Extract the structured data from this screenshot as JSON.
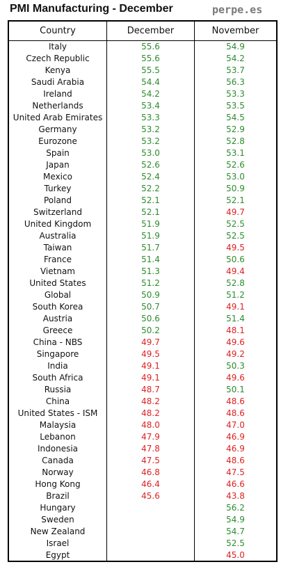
{
  "title": "PMI Manufacturing - December",
  "source": "perpe.es",
  "colors": {
    "above": "#2e8b2e",
    "below": "#dd2222",
    "text": "#111111"
  },
  "chart_data": {
    "type": "table",
    "threshold": 50,
    "columns": [
      "Country",
      "December",
      "November"
    ],
    "rows": [
      {
        "country": "Italy",
        "december": "55.6",
        "november": "54.9"
      },
      {
        "country": "Czech Republic",
        "december": "55.6",
        "november": "54.2"
      },
      {
        "country": "Kenya",
        "december": "55.5",
        "november": "53.7"
      },
      {
        "country": "Saudi Arabia",
        "december": "54.4",
        "november": "56.3"
      },
      {
        "country": "Ireland",
        "december": "54.2",
        "november": "53.3"
      },
      {
        "country": "Netherlands",
        "december": "53.4",
        "november": "53.5"
      },
      {
        "country": "United Arab Emirates",
        "december": "53.3",
        "november": "54.5"
      },
      {
        "country": "Germany",
        "december": "53.2",
        "november": "52.9"
      },
      {
        "country": "Eurozone",
        "december": "53.2",
        "november": "52.8"
      },
      {
        "country": "Spain",
        "december": "53.0",
        "november": "53.1"
      },
      {
        "country": "Japan",
        "december": "52.6",
        "november": "52.6"
      },
      {
        "country": "Mexico",
        "december": "52.4",
        "november": "53.0"
      },
      {
        "country": "Turkey",
        "december": "52.2",
        "november": "50.9"
      },
      {
        "country": "Poland",
        "december": "52.1",
        "november": "52.1"
      },
      {
        "country": "Switzerland",
        "december": "52.1",
        "november": "49.7"
      },
      {
        "country": "United Kingdom",
        "december": "51.9",
        "november": "52.5"
      },
      {
        "country": "Australia",
        "december": "51.9",
        "november": "52.5"
      },
      {
        "country": "Taiwan",
        "december": "51.7",
        "november": "49.5"
      },
      {
        "country": "France",
        "december": "51.4",
        "november": "50.6"
      },
      {
        "country": "Vietnam",
        "december": "51.3",
        "november": "49.4"
      },
      {
        "country": "United States",
        "december": "51.2",
        "november": "52.8"
      },
      {
        "country": "Global",
        "december": "50.9",
        "november": "51.2"
      },
      {
        "country": "South Korea",
        "december": "50.7",
        "november": "49.1"
      },
      {
        "country": "Austria",
        "december": "50.6",
        "november": "51.4"
      },
      {
        "country": "Greece",
        "december": "50.2",
        "november": "48.1"
      },
      {
        "country": "China - NBS",
        "december": "49.7",
        "november": "49.6"
      },
      {
        "country": "Singapore",
        "december": "49.5",
        "november": "49.2"
      },
      {
        "country": "India",
        "december": "49.1",
        "november": "50.3"
      },
      {
        "country": "South Africa",
        "december": "49.1",
        "november": "49.6"
      },
      {
        "country": "Russia",
        "december": "48.7",
        "november": "50.1"
      },
      {
        "country": "China",
        "december": "48.2",
        "november": "48.6"
      },
      {
        "country": "United States - ISM",
        "december": "48.2",
        "november": "48.6"
      },
      {
        "country": "Malaysia",
        "december": "48.0",
        "november": "47.0"
      },
      {
        "country": "Lebanon",
        "december": "47.9",
        "november": "46.9"
      },
      {
        "country": "Indonesia",
        "december": "47.8",
        "november": "46.9"
      },
      {
        "country": "Canada",
        "december": "47.5",
        "november": "48.6"
      },
      {
        "country": "Norway",
        "december": "46.8",
        "november": "47.5"
      },
      {
        "country": "Hong Kong",
        "december": "46.4",
        "november": "46.6"
      },
      {
        "country": "Brazil",
        "december": "45.6",
        "november": "43.8"
      },
      {
        "country": "Hungary",
        "december": "",
        "november": "56.2"
      },
      {
        "country": "Sweden",
        "december": "",
        "november": "54.9"
      },
      {
        "country": "New Zealand",
        "december": "",
        "november": "54.7"
      },
      {
        "country": "Israel",
        "december": "",
        "november": "52.5"
      },
      {
        "country": "Egypt",
        "december": "",
        "november": "45.0"
      }
    ]
  }
}
